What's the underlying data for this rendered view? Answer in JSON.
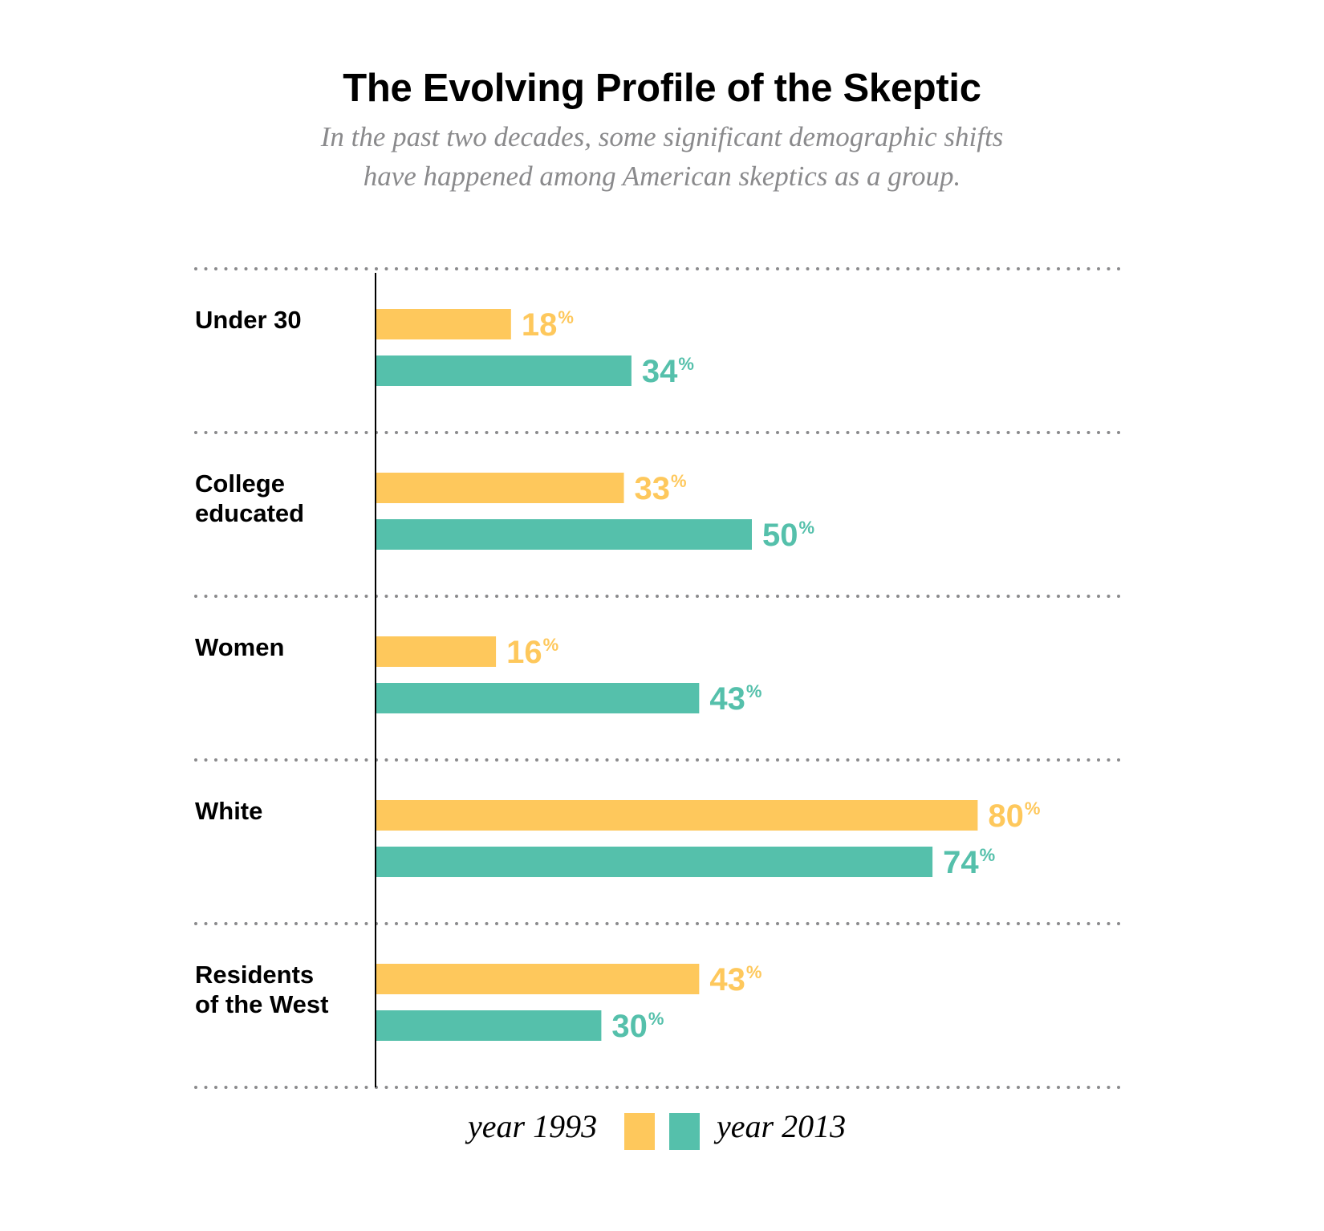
{
  "chart_data": {
    "type": "bar",
    "orientation": "horizontal",
    "title": "The Evolving Profile of the Skeptic",
    "subtitle": [
      "In the past two decades, some significant demographic shifts",
      "have happened among American skeptics as a group."
    ],
    "categories": [
      [
        "Under 30"
      ],
      [
        "College",
        "educated"
      ],
      [
        "Women"
      ],
      [
        "White"
      ],
      [
        "Residents",
        "of the West"
      ]
    ],
    "series": [
      {
        "name": "year 1993",
        "color": "#FEC85C",
        "values": [
          18,
          33,
          16,
          80,
          43
        ]
      },
      {
        "name": "year 2013",
        "color": "#55C0AB",
        "values": [
          34,
          50,
          43,
          74,
          30
        ]
      }
    ],
    "value_suffix": "%",
    "xlim": [
      0,
      100
    ],
    "xlabel": "",
    "ylabel": "",
    "grid": "dotted separators between categories",
    "separator_color": "#8A8A8C",
    "axis_color": "#000000",
    "legend": {
      "placement": "bottom-center",
      "entries": [
        "year 1993",
        "year 2013"
      ]
    }
  }
}
